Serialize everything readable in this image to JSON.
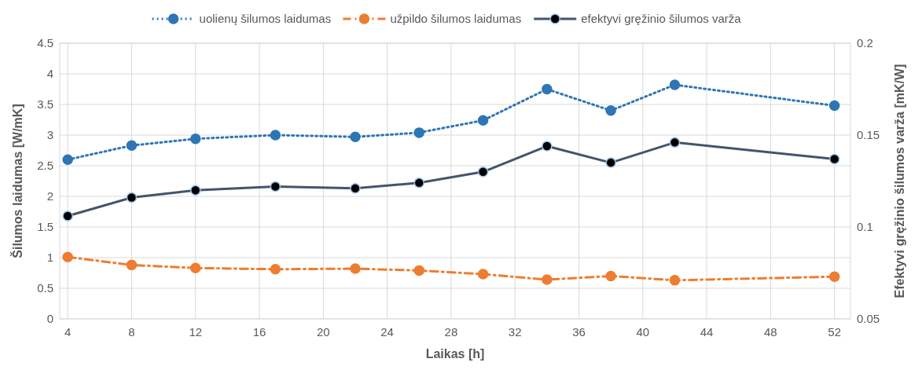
{
  "chart_data": {
    "type": "line",
    "xlabel": "Laikas [h]",
    "ylabel": "Šilumos laidumas [W/mK]",
    "y2label": "Efektyvi gręžinio šilumos varža [mK/W]",
    "x": [
      4,
      8,
      12,
      17,
      22,
      26,
      30,
      34,
      38,
      42,
      52
    ],
    "xlim": [
      3.5,
      53
    ],
    "xticks": [
      4,
      8,
      12,
      16,
      20,
      24,
      28,
      32,
      36,
      40,
      44,
      48,
      52
    ],
    "ylim": [
      0,
      4.5
    ],
    "yticks": [
      0,
      0.5,
      1,
      1.5,
      2,
      2.5,
      3,
      3.5,
      4,
      4.5
    ],
    "y2lim": [
      0.05,
      0.2
    ],
    "y2ticks": [
      0.05,
      0.1,
      0.15,
      0.2
    ],
    "grid": true,
    "legend": "top",
    "marker": "circle",
    "series": [
      {
        "name": "uolienų šilumos laidumas",
        "color": "#2e75b6",
        "line_style": "dotted",
        "values": [
          2.6,
          2.83,
          2.94,
          3.0,
          2.97,
          3.04,
          3.24,
          3.75,
          3.4,
          3.82,
          3.48
        ]
      },
      {
        "name": "užpildo šilumos laidumas",
        "color": "#ed7d31",
        "line_style": "dashed",
        "values": [
          1.01,
          0.88,
          0.83,
          0.81,
          0.82,
          0.79,
          0.73,
          0.64,
          0.7,
          0.63,
          0.69
        ]
      },
      {
        "name": "efektyvi gręžinio šilumos varža",
        "color": "#44546a",
        "line_style": "solid",
        "axis": "y2",
        "values": [
          0.106,
          0.116,
          0.12,
          0.122,
          0.121,
          0.124,
          0.13,
          0.144,
          0.135,
          0.146,
          0.137
        ]
      }
    ]
  }
}
